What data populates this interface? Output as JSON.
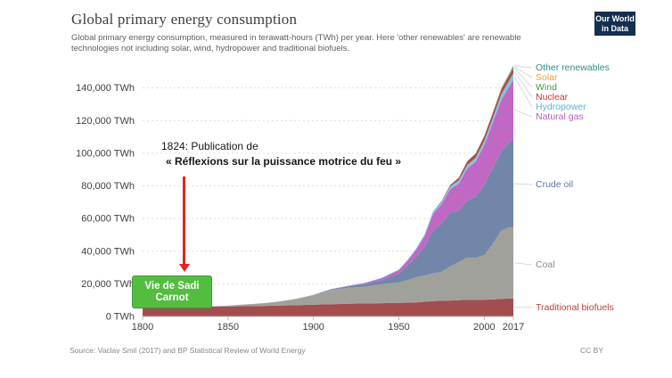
{
  "header": {
    "title": "Global primary energy consumption",
    "subtitle": "Global primary energy consumption, measured in terawatt-hours (TWh) per year. Here 'other renewables' are renewable technologies not including solar, wind, hydropower and traditional biofuels.",
    "logo": {
      "line1": "Our World",
      "line2": "in Data",
      "bg_color": "#15304e"
    }
  },
  "annotation": {
    "line1": "1824: Publication de",
    "line2": "« Réflexions sur la puissance motrice du feu »",
    "arrow_color": "#e8231a",
    "box_label": "Vie de Sadi Carnot",
    "box_color": "#53bd3f",
    "box_border_color": "#3f9c30"
  },
  "footer": {
    "source": "Source: Vaclav Smil (2017) and BP Statistical Review of World Energy",
    "license": "CC BY"
  },
  "chart_data": {
    "type": "area",
    "stacked": true,
    "title": "Global primary energy consumption",
    "xlabel": "Year",
    "ylabel": "TWh",
    "xlim": [
      1800,
      2017
    ],
    "ylim": [
      0,
      160000
    ],
    "grid": "horizontal-dashed",
    "legend_position": "right",
    "x": [
      1800,
      1810,
      1820,
      1830,
      1840,
      1850,
      1860,
      1870,
      1880,
      1890,
      1900,
      1910,
      1920,
      1930,
      1940,
      1950,
      1955,
      1960,
      1965,
      1970,
      1975,
      1980,
      1985,
      1990,
      1995,
      2000,
      2005,
      2010,
      2015,
      2017
    ],
    "series": [
      {
        "id": "traditional-biofuels",
        "name": "Traditional biofuels",
        "color": "#a34d4f",
        "label_color": "#b93d35",
        "values": [
          5556,
          5650,
          5750,
          5850,
          5950,
          6111,
          6300,
          6450,
          6650,
          6900,
          7222,
          7500,
          7750,
          8000,
          8150,
          8333,
          8450,
          8600,
          9000,
          9444,
          9600,
          9800,
          10000,
          10200,
          10250,
          10278,
          10450,
          10800,
          11000,
          11111
        ]
      },
      {
        "id": "coal",
        "name": "Coal",
        "color": "#a1a19c",
        "label_color": "#878787",
        "values": [
          97,
          128,
          153,
          264,
          356,
          569,
          1061,
          1642,
          2542,
          3856,
          5728,
          8656,
          9833,
          10125,
          11586,
          12603,
          13856,
          15442,
          16058,
          17054,
          17731,
          20858,
          23322,
          25900,
          25625,
          27427,
          34131,
          41962,
          43786,
          43397
        ]
      },
      {
        "id": "crude-oil",
        "name": "Crude oil",
        "color": "#7286aa",
        "label_color": "#5b78a4",
        "values": [
          0,
          0,
          0,
          0,
          0,
          0,
          5,
          11,
          33,
          89,
          181,
          397,
          889,
          1756,
          2653,
          5444,
          8950,
          12200,
          17800,
          26243,
          29500,
          33000,
          31500,
          35000,
          37500,
          42881,
          46500,
          48500,
          52000,
          53752
        ]
      },
      {
        "id": "natural-gas",
        "name": "Natural gas",
        "color": "#c068c4",
        "label_color": "#b75cbd",
        "values": [
          0,
          0,
          0,
          0,
          0,
          0,
          0,
          0,
          8,
          33,
          64,
          144,
          233,
          603,
          1092,
          2092,
          2900,
          4472,
          6306,
          10182,
          12000,
          14244,
          16500,
          19484,
          21500,
          24450,
          27750,
          31625,
          34742,
          36704
        ]
      },
      {
        "id": "hydropower",
        "name": "Hydropower",
        "color": "#79c7e3",
        "label_color": "#58b7da",
        "values": [
          0,
          0,
          0,
          0,
          0,
          0,
          0,
          2,
          5,
          10,
          17,
          48,
          86,
          156,
          261,
          340,
          450,
          689,
          923,
          1180,
          1450,
          1769,
          2000,
          2191,
          2470,
          2619,
          2933,
          3437,
          3884,
          4060
        ]
      },
      {
        "id": "nuclear",
        "name": "Nuclear",
        "color": "#c5403a",
        "label_color": "#bf3a32",
        "values": [
          0,
          0,
          0,
          0,
          0,
          0,
          0,
          0,
          0,
          0,
          0,
          0,
          0,
          0,
          0,
          0,
          0,
          3,
          26,
          79,
          370,
          713,
          1489,
          2001,
          2321,
          2591,
          2768,
          2756,
          2571,
          2636
        ]
      },
      {
        "id": "wind",
        "name": "Wind",
        "color": "#4ba04d",
        "label_color": "#439a45",
        "values": [
          0,
          0,
          0,
          0,
          0,
          0,
          0,
          0,
          0,
          0,
          0,
          0,
          0,
          0,
          0,
          0,
          0,
          0,
          0,
          0,
          0,
          0,
          1,
          4,
          8,
          31,
          104,
          342,
          838,
          1128
        ]
      },
      {
        "id": "solar",
        "name": "Solar",
        "color": "#f0a63d",
        "label_color": "#eda33b",
        "values": [
          0,
          0,
          0,
          0,
          0,
          0,
          0,
          0,
          0,
          0,
          0,
          0,
          0,
          0,
          0,
          0,
          0,
          0,
          0,
          0,
          0,
          0,
          0,
          0,
          0,
          1,
          4,
          34,
          256,
          443
        ]
      },
      {
        "id": "other-renewables",
        "name": "Other renewables",
        "color": "#3a958e",
        "label_color": "#2f8c82",
        "values": [
          0,
          0,
          0,
          0,
          0,
          0,
          0,
          0,
          0,
          0,
          5,
          8,
          12,
          18,
          25,
          30,
          40,
          50,
          70,
          90,
          110,
          150,
          200,
          280,
          330,
          380,
          440,
          520,
          600,
          625
        ]
      }
    ],
    "yticks": [
      0,
      20000,
      40000,
      60000,
      80000,
      100000,
      120000,
      140000
    ],
    "ytick_labels": [
      "0 TWh",
      "20,000 TWh",
      "40,000 TWh",
      "60,000 TWh",
      "80,000 TWh",
      "100,000 TWh",
      "120,000 TWh",
      "140,000 TWh"
    ],
    "xticks": [
      1800,
      1850,
      1900,
      1950,
      2000,
      2017
    ],
    "xtick_labels": [
      "1800",
      "1850",
      "1900",
      "1950",
      "2000",
      "2017"
    ]
  }
}
